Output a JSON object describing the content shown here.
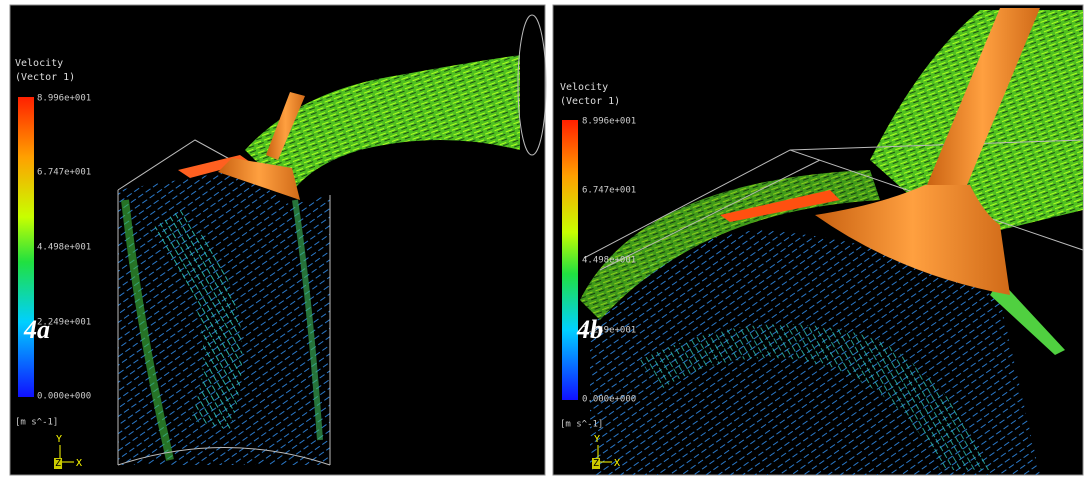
{
  "panels": [
    {
      "label": "4a",
      "legend": {
        "title": "Velocity",
        "subtitle": "(Vector 1)",
        "ticks": [
          "8.996e+001",
          "6.747e+001",
          "4.498e+001",
          "2.249e+001",
          "0.000e+000"
        ],
        "unit": "[m s^-1]"
      },
      "axes": {
        "y": "Y",
        "z": "Z",
        "x": "X"
      }
    },
    {
      "label": "4b",
      "legend": {
        "title": "Velocity",
        "subtitle": "(Vector 1)",
        "ticks": [
          "8.996e+001",
          "6.747e+001",
          "4.498e+001",
          "2.249e+001",
          "0.000e+000"
        ],
        "unit": "[m s^-1]"
      },
      "axes": {
        "y": "Y",
        "z": "Z",
        "x": "X"
      }
    }
  ]
}
